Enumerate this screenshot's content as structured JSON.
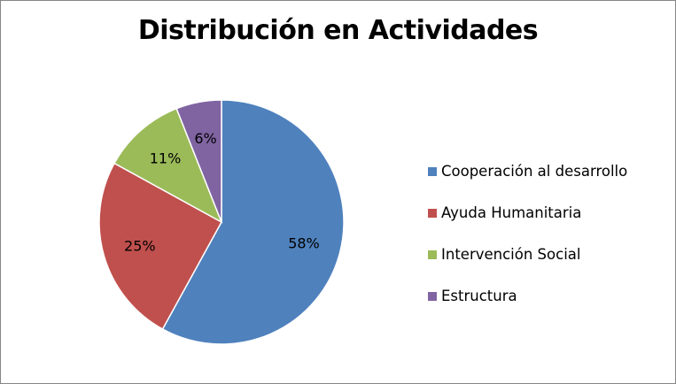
{
  "chart_data": {
    "type": "pie",
    "title": "Distribución en Actividades",
    "categories": [
      "Cooperación al desarrollo",
      "Ayuda Humanitaria",
      "Intervención Social",
      "Estructura"
    ],
    "values": [
      58,
      25,
      11,
      6
    ],
    "labels": [
      "58%",
      "25%",
      "11%",
      "6%"
    ],
    "colors": [
      "#4F81BD",
      "#C0504D",
      "#9BBB59",
      "#8064A2"
    ],
    "legend_position": "right"
  }
}
